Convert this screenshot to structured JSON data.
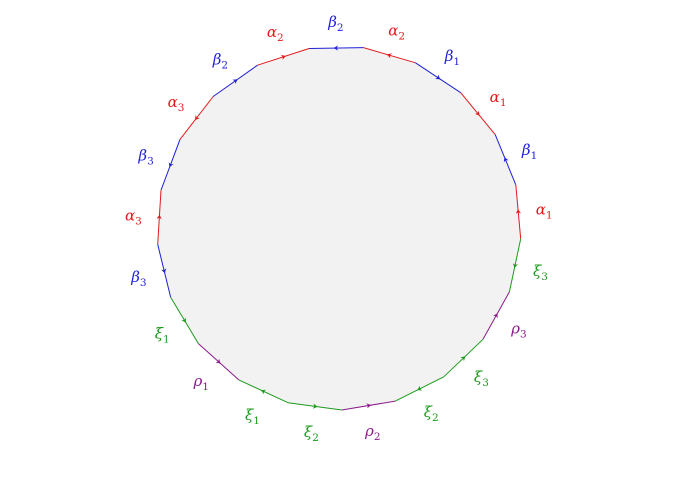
{
  "diagram": {
    "fill_color": "#f2f2f2",
    "colors": {
      "alpha": "#e31a1c",
      "beta": "#1f1fd6",
      "xi": "#1c9a1c",
      "rho": "#8b1a8b"
    },
    "edges": [
      {
        "id": "e1",
        "symbol": "α",
        "index": "2",
        "family": "alpha",
        "direction": "backward"
      },
      {
        "id": "e2",
        "symbol": "β",
        "index": "1",
        "family": "beta",
        "direction": "forward"
      },
      {
        "id": "e3",
        "symbol": "α",
        "index": "1",
        "family": "alpha",
        "direction": "forward"
      },
      {
        "id": "e4",
        "symbol": "β",
        "index": "1",
        "family": "beta",
        "direction": "backward"
      },
      {
        "id": "e5",
        "symbol": "α",
        "index": "1",
        "family": "alpha",
        "direction": "backward"
      },
      {
        "id": "e6",
        "symbol": "ξ",
        "index": "3",
        "family": "xi",
        "direction": "forward"
      },
      {
        "id": "e7",
        "symbol": "ρ",
        "index": "3",
        "family": "rho",
        "direction": "backward"
      },
      {
        "id": "e8",
        "symbol": "ξ",
        "index": "3",
        "family": "xi",
        "direction": "backward"
      },
      {
        "id": "e9",
        "symbol": "ξ",
        "index": "2",
        "family": "xi",
        "direction": "forward"
      },
      {
        "id": "e10",
        "symbol": "ρ",
        "index": "2",
        "family": "rho",
        "direction": "backward"
      },
      {
        "id": "e11",
        "symbol": "ξ",
        "index": "2",
        "family": "xi",
        "direction": "backward"
      },
      {
        "id": "e12",
        "symbol": "ξ",
        "index": "1",
        "family": "xi",
        "direction": "forward"
      },
      {
        "id": "e13",
        "symbol": "ρ",
        "index": "1",
        "family": "rho",
        "direction": "backward"
      },
      {
        "id": "e14",
        "symbol": "ξ",
        "index": "1",
        "family": "xi",
        "direction": "backward"
      },
      {
        "id": "e15",
        "symbol": "β",
        "index": "3",
        "family": "beta",
        "direction": "backward"
      },
      {
        "id": "e16",
        "symbol": "α",
        "index": "3",
        "family": "alpha",
        "direction": "forward"
      },
      {
        "id": "e17",
        "symbol": "β",
        "index": "3",
        "family": "beta",
        "direction": "backward"
      },
      {
        "id": "e18",
        "symbol": "α",
        "index": "3",
        "family": "alpha",
        "direction": "backward"
      },
      {
        "id": "e19",
        "symbol": "β",
        "index": "2",
        "family": "beta",
        "direction": "forward"
      },
      {
        "id": "e20",
        "symbol": "α",
        "index": "2",
        "family": "alpha",
        "direction": "forward"
      },
      {
        "id": "e21",
        "symbol": "β",
        "index": "2",
        "family": "beta",
        "direction": "backward"
      }
    ]
  }
}
